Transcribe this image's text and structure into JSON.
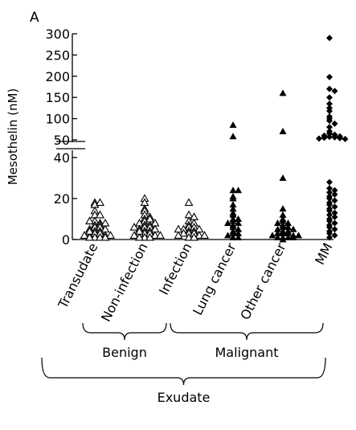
{
  "chart_data": {
    "type": "scatter",
    "panel_label": "A",
    "ylabel": "Mesothelin (nM)",
    "y_axis_broken": true,
    "y_segments": [
      {
        "range": [
          0,
          40
        ],
        "ticks": [
          "0",
          "20",
          "40"
        ]
      },
      {
        "range": [
          50,
          300
        ],
        "ticks": [
          "50",
          "100",
          "150",
          "200",
          "250",
          "300"
        ]
      }
    ],
    "categories": [
      "Transudate",
      "Non-infection",
      "Infection",
      "Lung cancer",
      "Other cancer",
      "MM"
    ],
    "brackets": [
      {
        "label": "Benign",
        "from_category": 0,
        "to_category": 2
      },
      {
        "label": "Malignant",
        "from_category": 2,
        "to_category": 5
      },
      {
        "label": "Exudate",
        "from_category": 0,
        "to_category": 5
      }
    ],
    "series": [
      {
        "category": "Transudate",
        "marker": "open-triangle",
        "values": [
          18,
          17,
          18,
          14,
          12,
          9,
          8,
          9,
          7,
          6,
          7,
          6,
          5,
          5,
          4,
          4,
          3,
          3,
          2,
          2,
          2,
          1,
          1,
          1,
          12,
          8,
          4,
          2,
          1
        ]
      },
      {
        "category": "Non-infection",
        "marker": "open-triangle",
        "values": [
          20,
          18,
          15,
          14,
          12,
          11,
          10,
          9,
          9,
          8,
          8,
          7,
          7,
          6,
          6,
          5,
          5,
          4,
          4,
          3,
          3,
          3,
          2,
          2,
          1,
          1,
          1,
          10,
          6,
          4,
          2
        ]
      },
      {
        "category": "Infection",
        "marker": "open-triangle",
        "values": [
          18,
          12,
          11,
          9,
          8,
          7,
          6,
          6,
          5,
          5,
          4,
          4,
          3,
          3,
          3,
          2,
          2,
          1,
          1,
          2,
          5
        ]
      },
      {
        "category": "Lung cancer",
        "marker": "filled-triangle",
        "values": [
          85,
          58,
          24,
          24,
          21,
          20,
          17,
          15,
          13,
          12,
          10,
          10,
          9,
          8,
          8,
          7,
          6,
          5,
          4,
          3,
          3,
          2,
          1,
          1
        ]
      },
      {
        "category": "Other cancer",
        "marker": "filled-triangle",
        "values": [
          160,
          70,
          30,
          15,
          12,
          10,
          9,
          8,
          8,
          7,
          6,
          6,
          5,
          5,
          4,
          4,
          3,
          3,
          3,
          2,
          2,
          2,
          1,
          1,
          1,
          1,
          0
        ]
      },
      {
        "category": "MM",
        "marker": "filled-diamond",
        "values": [
          290,
          198,
          170,
          165,
          150,
          135,
          125,
          118,
          105,
          100,
          95,
          88,
          80,
          70,
          65,
          62,
          60,
          58,
          57,
          56,
          55,
          54,
          53,
          52,
          28,
          25,
          24,
          23,
          22,
          21,
          20,
          19,
          18,
          17,
          16,
          15,
          14,
          13,
          12,
          11,
          10,
          9,
          8,
          7,
          6,
          5,
          4,
          3,
          2,
          1
        ]
      }
    ]
  }
}
